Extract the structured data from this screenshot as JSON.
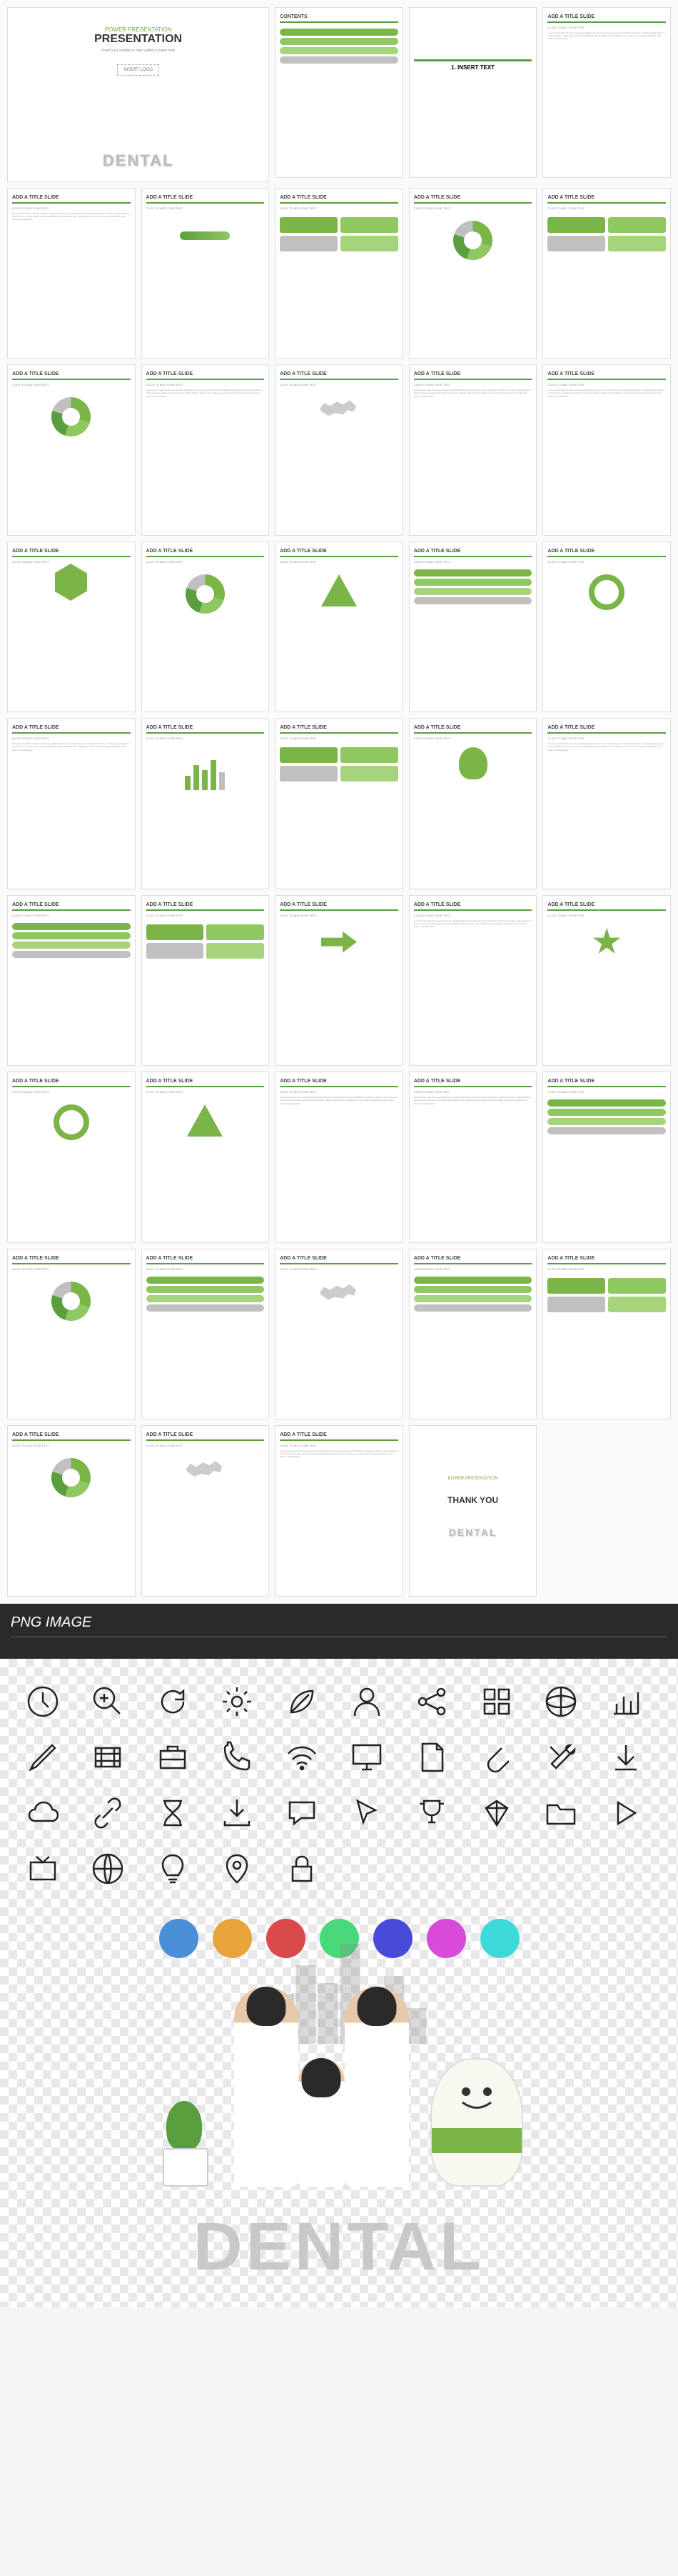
{
  "cover": {
    "subtitle": "POWER PRESENTATION",
    "title": "PRESENTATION",
    "desc": "Insert your subtitle or main author's name here",
    "insert": "INSERT\nLOGO",
    "dental": "DENTAL"
  },
  "contents": {
    "title": "CONTENTS",
    "section": "1. INSERT TEXT"
  },
  "slide_title": "ADD A TITLE SLIDE",
  "slide_sub": "CLICK TO ADD YOUR TEXT",
  "thankyou": {
    "sub": "POWER PRESENTATION",
    "title": "THANK YOU"
  },
  "png": {
    "title": "PNG IMAGE"
  },
  "colors": {
    "green1": "#5a9e3d",
    "green2": "#7bb548",
    "green3": "#8fc760",
    "green4": "#a5d47c",
    "gray": "#c0c0c0",
    "dark": "#2a2a2a"
  },
  "slides": [
    {
      "type": "contents"
    },
    {
      "type": "section"
    },
    {
      "type": "text"
    },
    {
      "type": "text"
    },
    {
      "type": "wave"
    },
    {
      "type": "boxes"
    },
    {
      "type": "donut"
    },
    {
      "type": "boxes"
    },
    {
      "type": "donut"
    },
    {
      "type": "text"
    },
    {
      "type": "map"
    },
    {
      "type": "text"
    },
    {
      "type": "text"
    },
    {
      "type": "hex"
    },
    {
      "type": "donut"
    },
    {
      "type": "tri"
    },
    {
      "type": "rows"
    },
    {
      "type": "circle"
    },
    {
      "type": "text"
    },
    {
      "type": "bars"
    },
    {
      "type": "boxes"
    },
    {
      "type": "head"
    },
    {
      "type": "text"
    },
    {
      "type": "rows"
    },
    {
      "type": "boxes"
    },
    {
      "type": "arrow"
    },
    {
      "type": "text"
    },
    {
      "type": "star"
    },
    {
      "type": "circle"
    },
    {
      "type": "tri"
    },
    {
      "type": "text"
    },
    {
      "type": "text"
    },
    {
      "type": "rows"
    },
    {
      "type": "donut"
    },
    {
      "type": "rows"
    },
    {
      "type": "map"
    },
    {
      "type": "rows"
    },
    {
      "type": "boxes"
    },
    {
      "type": "donut"
    },
    {
      "type": "map"
    },
    {
      "type": "text"
    },
    {
      "type": "thankyou"
    }
  ],
  "icons": [
    "clock",
    "zoom",
    "refresh",
    "gear",
    "leaf",
    "user",
    "share",
    "grid",
    "globe",
    "chart",
    "pen",
    "film",
    "case",
    "phone",
    "wifi",
    "monitor",
    "doc",
    "clip",
    "tools",
    "down",
    "cloud",
    "link",
    "hourglass",
    "download",
    "chat",
    "pointer",
    "trophy",
    "diamond",
    "folder",
    "play",
    "tv",
    "world",
    "bulb",
    "pin",
    "lock"
  ],
  "color_icons": [
    "#4a90d9",
    "#e8a33d",
    "#d94a4a",
    "#4ad97a",
    "#4a4ad9",
    "#d94ad9",
    "#3dd9d9"
  ],
  "buildings": [
    40,
    70,
    110,
    85,
    140,
    60,
    95,
    50
  ]
}
